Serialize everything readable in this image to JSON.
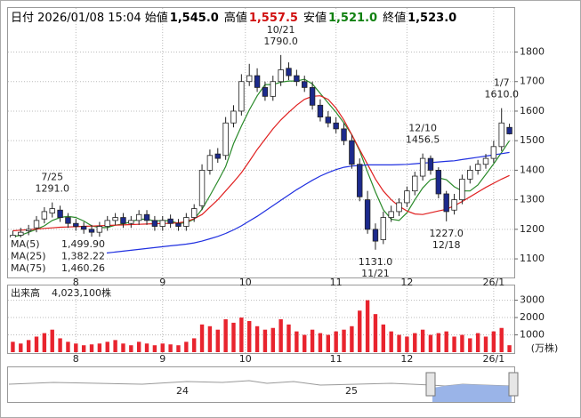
{
  "chart_data": {
    "type": "candlestick",
    "header": {
      "date_label": "日付",
      "datetime": "2026/01/08 15:04",
      "fields": [
        {
          "name": "始値",
          "text": "1,545.0",
          "color": "#000000"
        },
        {
          "name": "高値",
          "text": "1,557.5",
          "color": "#d01010"
        },
        {
          "name": "安値",
          "text": "1,521.0",
          "color": "#108010"
        },
        {
          "name": "終値",
          "text": "1,523.0",
          "color": "#000000"
        }
      ]
    },
    "xlim": [
      -0.5,
      63.5
    ],
    "xticks": [
      {
        "value": 8,
        "label": "8"
      },
      {
        "value": 19,
        "label": "9"
      },
      {
        "value": 29.5,
        "label": "10"
      },
      {
        "value": 41,
        "label": "11"
      },
      {
        "value": 50,
        "label": "12"
      },
      {
        "value": 61,
        "label": "26/1"
      }
    ],
    "ylim": [
      1040,
      1940
    ],
    "yticks": [
      1100,
      1200,
      1300,
      1400,
      1500,
      1600,
      1700,
      1800
    ],
    "grid": true,
    "up_color": "#ffffff",
    "down_color": "#1c2a8c",
    "open": [
      1170,
      1180,
      1195,
      1205,
      1235,
      1255,
      1265,
      1240,
      1220,
      1210,
      1200,
      1190,
      1210,
      1230,
      1240,
      1220,
      1230,
      1250,
      1230,
      1210,
      1235,
      1220,
      1210,
      1240,
      1280,
      1400,
      1455,
      1450,
      1560,
      1600,
      1700,
      1720,
      1680,
      1650,
      1700,
      1745,
      1720,
      1700,
      1680,
      1620,
      1580,
      1560,
      1540,
      1500,
      1420,
      1300,
      1200,
      1165,
      1240,
      1260,
      1290,
      1330,
      1380,
      1440,
      1400,
      1320,
      1265,
      1300,
      1370,
      1400,
      1420,
      1440,
      1480,
      1545
    ],
    "high": [
      1195,
      1205,
      1215,
      1245,
      1275,
      1291,
      1280,
      1255,
      1235,
      1225,
      1215,
      1225,
      1245,
      1255,
      1255,
      1245,
      1265,
      1265,
      1245,
      1245,
      1250,
      1235,
      1255,
      1285,
      1420,
      1470,
      1475,
      1580,
      1620,
      1725,
      1760,
      1745,
      1700,
      1720,
      1790,
      1765,
      1740,
      1720,
      1700,
      1640,
      1600,
      1580,
      1560,
      1520,
      1440,
      1330,
      1220,
      1260,
      1280,
      1305,
      1345,
      1395,
      1456.5,
      1450,
      1410,
      1330,
      1320,
      1385,
      1415,
      1435,
      1455,
      1500,
      1610,
      1557.5
    ],
    "low": [
      1155,
      1165,
      1180,
      1190,
      1220,
      1240,
      1225,
      1205,
      1195,
      1185,
      1175,
      1175,
      1195,
      1215,
      1205,
      1205,
      1215,
      1215,
      1195,
      1195,
      1205,
      1195,
      1195,
      1225,
      1265,
      1385,
      1425,
      1435,
      1545,
      1585,
      1685,
      1665,
      1635,
      1635,
      1685,
      1705,
      1685,
      1665,
      1605,
      1565,
      1545,
      1525,
      1485,
      1405,
      1295,
      1185,
      1131,
      1150,
      1225,
      1245,
      1275,
      1315,
      1365,
      1385,
      1305,
      1227,
      1250,
      1285,
      1355,
      1385,
      1405,
      1425,
      1465,
      1521
    ],
    "close": [
      1180,
      1190,
      1200,
      1230,
      1260,
      1270,
      1240,
      1220,
      1210,
      1200,
      1190,
      1210,
      1230,
      1240,
      1220,
      1230,
      1250,
      1230,
      1210,
      1230,
      1220,
      1210,
      1240,
      1270,
      1400,
      1450,
      1440,
      1560,
      1600,
      1700,
      1720,
      1680,
      1650,
      1700,
      1740,
      1720,
      1700,
      1680,
      1620,
      1580,
      1560,
      1540,
      1500,
      1420,
      1310,
      1200,
      1160,
      1240,
      1260,
      1290,
      1330,
      1380,
      1440,
      1400,
      1320,
      1260,
      1300,
      1370,
      1400,
      1420,
      1440,
      1480,
      1560,
      1523
    ],
    "ma": [
      {
        "name": "MA(5)",
        "value_label": "1,499.90",
        "color": "#2a8a2a",
        "values": [
          1175,
          1180,
          1190,
          1200,
          1212,
          1230,
          1240,
          1244,
          1240,
          1228,
          1212,
          1206,
          1206,
          1214,
          1218,
          1226,
          1234,
          1234,
          1228,
          1230,
          1228,
          1220,
          1222,
          1234,
          1268,
          1314,
          1362,
          1412,
          1490,
          1550,
          1604,
          1652,
          1690,
          1690,
          1698,
          1702,
          1702,
          1708,
          1692,
          1660,
          1628,
          1596,
          1560,
          1520,
          1466,
          1394,
          1326,
          1266,
          1234,
          1230,
          1256,
          1300,
          1340,
          1368,
          1374,
          1368,
          1344,
          1330,
          1330,
          1350,
          1386,
          1422,
          1460,
          1499.9
        ]
      },
      {
        "name": "MA(25)",
        "value_label": "1,382.22",
        "color": "#e02020",
        "values": [
          1195,
          1197,
          1199,
          1201,
          1203,
          1205,
          1207,
          1208,
          1209,
          1210,
          1211,
          1212,
          1213,
          1214,
          1215,
          1216,
          1217,
          1218,
          1219,
          1220,
          1220,
          1222,
          1226,
          1236,
          1250,
          1275,
          1300,
          1330,
          1360,
          1392,
          1430,
          1470,
          1505,
          1540,
          1570,
          1596,
          1620,
          1640,
          1650,
          1652,
          1640,
          1610,
          1570,
          1520,
          1470,
          1420,
          1370,
          1330,
          1300,
          1278,
          1262,
          1252,
          1250,
          1256,
          1262,
          1268,
          1280,
          1294,
          1310,
          1326,
          1342,
          1356,
          1370,
          1382.22
        ]
      },
      {
        "name": "MA(75)",
        "value_label": "1,460.26",
        "color": "#2030e0",
        "values": [
          1088,
          1090,
          1092,
          1094,
          1096,
          1099,
          1102,
          1105,
          1108,
          1111,
          1114,
          1117,
          1120,
          1123,
          1126,
          1129,
          1132,
          1135,
          1138,
          1141,
          1144,
          1147,
          1150,
          1154,
          1160,
          1168,
          1176,
          1186,
          1198,
          1212,
          1228,
          1244,
          1262,
          1280,
          1298,
          1316,
          1334,
          1350,
          1366,
          1380,
          1392,
          1402,
          1410,
          1414,
          1416,
          1418,
          1418,
          1418,
          1418,
          1419,
          1420,
          1422,
          1424,
          1426,
          1428,
          1430,
          1432,
          1436,
          1440,
          1444,
          1448,
          1452,
          1456,
          1460.26
        ]
      }
    ],
    "annotations": [
      {
        "x": 5,
        "date": "7/25",
        "value": 1291,
        "label": "1291.0",
        "position": "above"
      },
      {
        "x": 34,
        "date": "10/21",
        "value": 1790,
        "label": "1790.0",
        "position": "above"
      },
      {
        "x": 46,
        "date": "11/21",
        "value": 1131,
        "label": "1131.0",
        "position": "below"
      },
      {
        "x": 52,
        "date": "12/10",
        "value": 1456.5,
        "label": "1456.5",
        "position": "above"
      },
      {
        "x": 55,
        "date": "12/18",
        "value": 1227,
        "label": "1227.0",
        "position": "below"
      },
      {
        "x": 62,
        "date": "1/7",
        "value": 1610,
        "label": "1610.0",
        "position": "above"
      }
    ],
    "volume": {
      "label": "出来高",
      "total": "4,023,100株",
      "unit": "(万株)",
      "color": "#e8242e",
      "ylim": [
        0,
        3800
      ],
      "yticks": [
        1000,
        2000,
        3000
      ],
      "values": [
        600,
        500,
        700,
        900,
        1100,
        1300,
        800,
        600,
        500,
        400,
        450,
        500,
        600,
        700,
        500,
        400,
        600,
        500,
        400,
        500,
        450,
        400,
        600,
        800,
        1600,
        1500,
        1300,
        1900,
        1700,
        2000,
        1800,
        1500,
        1300,
        1400,
        1900,
        1600,
        1200,
        1000,
        1300,
        1100,
        1000,
        1200,
        1300,
        1500,
        2400,
        3000,
        2200,
        1600,
        1200,
        1000,
        900,
        1100,
        1300,
        1000,
        1100,
        1200,
        900,
        1000,
        800,
        1100,
        900,
        1200,
        1400,
        402.31
      ]
    },
    "navigator_labels": [
      "24",
      "25"
    ]
  }
}
